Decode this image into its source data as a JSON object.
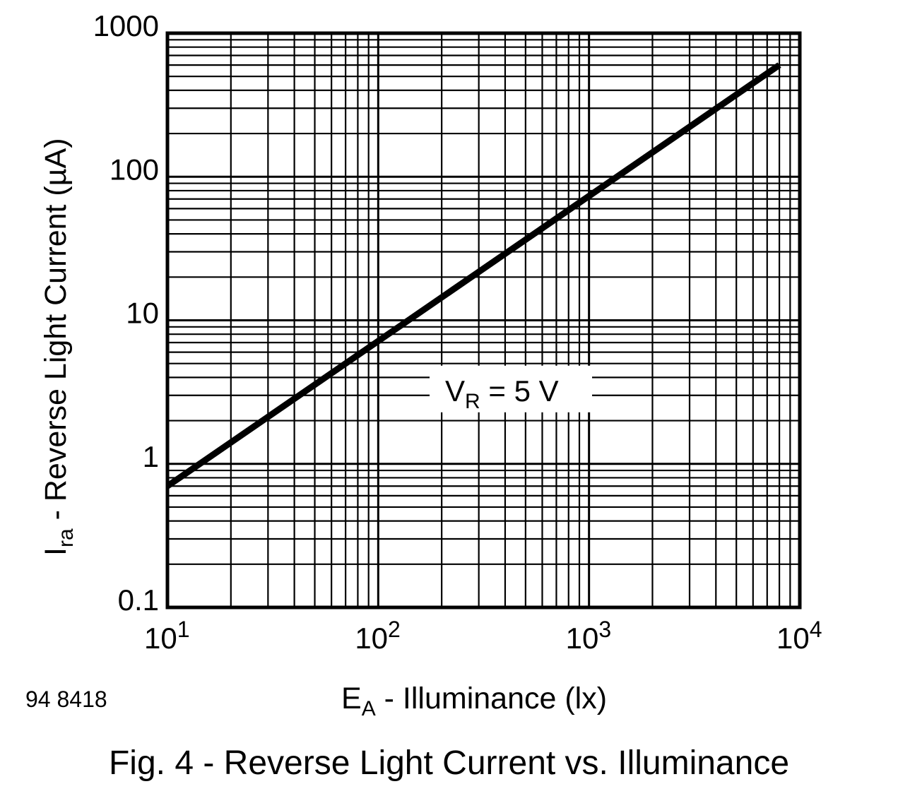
{
  "figure_id": "94 8418",
  "caption": "Fig. 4 - Reverse Light Current vs. Illuminance",
  "chart_data": {
    "type": "line",
    "xscale": "log",
    "yscale": "log",
    "grid": true,
    "xlim": [
      10,
      10000
    ],
    "ylim": [
      0.1,
      1000
    ],
    "xlabel": {
      "main": "E",
      "sub": "A",
      "rest": " - Illuminance (lx)"
    },
    "ylabel": {
      "main": "I",
      "sub": "ra",
      "rest": " - Reverse Light Current (µA)"
    },
    "x_ticks": [
      {
        "value": 10,
        "base": "10",
        "exp": "1"
      },
      {
        "value": 100,
        "base": "10",
        "exp": "2"
      },
      {
        "value": 1000,
        "base": "10",
        "exp": "3"
      },
      {
        "value": 10000,
        "base": "10",
        "exp": "4"
      }
    ],
    "y_ticks": [
      {
        "value": 0.1,
        "label": "0.1"
      },
      {
        "value": 1,
        "label": "1"
      },
      {
        "value": 10,
        "label": "10"
      },
      {
        "value": 100,
        "label": "100"
      },
      {
        "value": 1000,
        "label": "1000"
      }
    ],
    "series": [
      {
        "name": "VR = 5 V",
        "x": [
          10,
          8000
        ],
        "y": [
          0.7,
          600
        ]
      }
    ],
    "annotation": {
      "main": "V",
      "sub": "R",
      "rest": " = 5 V",
      "x": 900,
      "y": 2.9
    }
  }
}
